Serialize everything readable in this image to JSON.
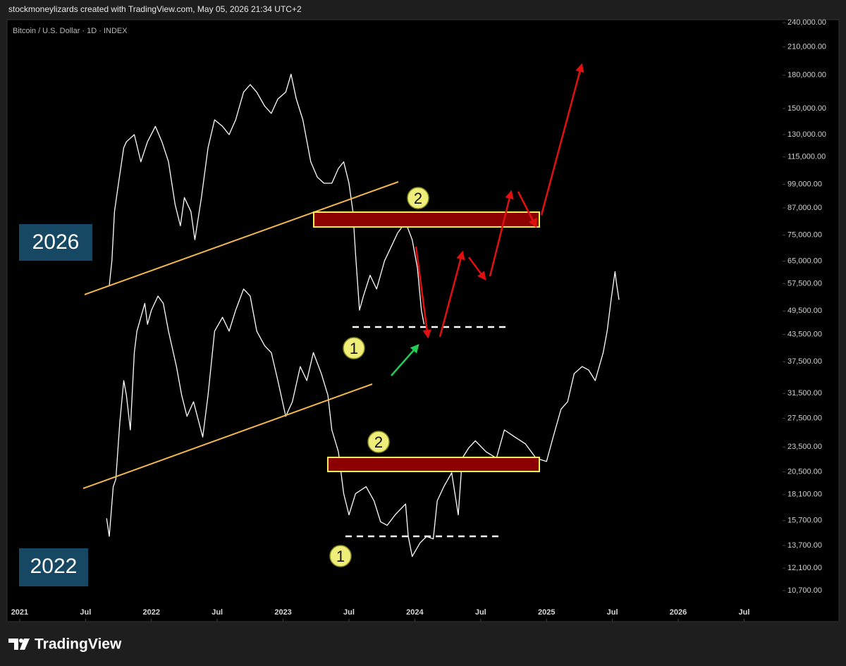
{
  "header": {
    "text": "stockmoneylizards created with TradingView.com, May 05, 2026 21:34 UTC+2"
  },
  "footer": {
    "brand": "TradingView"
  },
  "chart_data": {
    "type": "line",
    "title": "Bitcoin / U.S. Dollar · 1D · INDEX",
    "yscale": "log",
    "grid": false,
    "xlim": [
      2020.904,
      2026.792
    ],
    "ylim": [
      9100,
      242000
    ],
    "xticks": [
      2021,
      {
        "value": 2021.5,
        "label": "Jul"
      },
      2022,
      {
        "value": 2022.5,
        "label": "Jul"
      },
      2023,
      {
        "value": 2023.5,
        "label": "Jul"
      },
      2024,
      {
        "value": 2024.5,
        "label": "Jul"
      },
      2025,
      {
        "value": 2025.5,
        "label": "Jul"
      },
      2026,
      {
        "value": 2026.5,
        "label": "Jul"
      }
    ],
    "yticks": [
      {
        "value": 240000,
        "label": "240,000.00"
      },
      {
        "value": 210000,
        "label": "210,000.00"
      },
      {
        "value": 180000,
        "label": "180,000.00"
      },
      {
        "value": 150000,
        "label": "150,000.00"
      },
      {
        "value": 130000,
        "label": "130,000.00"
      },
      {
        "value": 115000,
        "label": "115,000.00"
      },
      {
        "value": 99000,
        "label": "99,000.00"
      },
      {
        "value": 87000,
        "label": "87,000.00"
      },
      {
        "value": 75000,
        "label": "75,000.00"
      },
      {
        "value": 65000,
        "label": "65,000.00"
      },
      {
        "value": 57500,
        "label": "57,500.00"
      },
      {
        "value": 49500,
        "label": "49,500.00"
      },
      {
        "value": 43500,
        "label": "43,500.00"
      },
      {
        "value": 37500,
        "label": "37,500.00"
      },
      {
        "value": 31500,
        "label": "31,500.00"
      },
      {
        "value": 27500,
        "label": "27,500.00"
      },
      {
        "value": 23500,
        "label": "23,500.00"
      },
      {
        "value": 20500,
        "label": "20,500.00"
      },
      {
        "value": 18100,
        "label": "18,100.00"
      },
      {
        "value": 15700,
        "label": "15,700.00"
      },
      {
        "value": 13700,
        "label": "13,700.00"
      },
      {
        "value": 12100,
        "label": "12,100.00"
      },
      {
        "value": 10700,
        "label": "10,700.00"
      }
    ],
    "series": [
      {
        "color": "#ffffff",
        "x": [
          2021.66,
          2021.68,
          2021.71,
          2021.73,
          2021.76,
          2021.79,
          2021.81,
          2021.84,
          2021.87,
          2021.89,
          2021.92,
          2021.95,
          2021.97,
          2022.0,
          2022.05,
          2022.09,
          2022.13,
          2022.19,
          2022.23,
          2022.27,
          2022.32,
          2022.39,
          2022.43,
          2022.48,
          2022.54,
          2022.59,
          2022.64,
          2022.7,
          2022.75,
          2022.8,
          2022.86,
          2022.91,
          2022.96,
          2023.02,
          2023.07,
          2023.13,
          2023.18,
          2023.23,
          2023.29,
          2023.34,
          2023.37,
          2023.42,
          2023.46,
          2023.5,
          2023.55,
          2023.63,
          2023.69,
          2023.74,
          2023.79,
          2023.85,
          2023.93,
          2023.95,
          2023.98,
          2024.04,
          2024.09,
          2024.14,
          2024.17,
          2024.22,
          2024.28,
          2024.33,
          2024.36,
          2024.41,
          2024.46,
          2024.54,
          2024.62,
          2024.68,
          2024.76,
          2024.84,
          2024.92,
          2025.0,
          2025.05,
          2025.11,
          2025.16,
          2025.21,
          2025.27,
          2025.32,
          2025.37,
          2025.43,
          2025.46,
          2025.49,
          2025.52,
          2025.53,
          2025.55
        ],
        "values": [
          15900,
          14400,
          18900,
          19700,
          26800,
          33800,
          31200,
          25800,
          39400,
          44300,
          47800,
          51600,
          46000,
          49700,
          53700,
          51600,
          44300,
          36500,
          31200,
          27800,
          30100,
          24800,
          31200,
          44300,
          47800,
          44300,
          49700,
          55800,
          53700,
          44300,
          40900,
          39400,
          33800,
          27800,
          30100,
          36500,
          33800,
          39400,
          35100,
          31200,
          25800,
          22900,
          18200,
          16200,
          18200,
          18900,
          17500,
          15600,
          15300,
          16200,
          17200,
          14400,
          12900,
          13900,
          14400,
          14200,
          17500,
          18900,
          20400,
          16200,
          22100,
          23400,
          24300,
          22900,
          22100,
          25800,
          24800,
          23900,
          22100,
          21700,
          24800,
          28900,
          30100,
          35100,
          36500,
          35800,
          33800,
          39400,
          44300,
          52600,
          61400,
          58000,
          52600
        ]
      },
      {
        "color": "#ffffff",
        "x": [
          2021.68,
          2021.7,
          2021.72,
          2021.75,
          2021.79,
          2021.81,
          2021.87,
          2021.92,
          2021.97,
          2022.03,
          2022.08,
          2022.13,
          2022.18,
          2022.22,
          2022.25,
          2022.3,
          2022.33,
          2022.38,
          2022.43,
          2022.48,
          2022.54,
          2022.59,
          2022.64,
          2022.7,
          2022.75,
          2022.8,
          2022.86,
          2022.91,
          2022.96,
          2023.02,
          2023.06,
          2023.1,
          2023.15,
          2023.21,
          2023.26,
          2023.31,
          2023.37,
          2023.42,
          2023.46,
          2023.5,
          2023.53,
          2023.55,
          2023.58,
          2023.61,
          2023.66,
          2023.71,
          2023.77,
          2023.82,
          2023.87,
          2023.93,
          2023.98,
          2024.02,
          2024.05,
          2024.07
        ],
        "values": [
          56900,
          65100,
          85300,
          99600,
          121000,
          125000,
          130000,
          112000,
          125000,
          136000,
          125000,
          112000,
          88600,
          78900,
          92100,
          85300,
          73100,
          92100,
          121000,
          141000,
          136000,
          130000,
          141000,
          164000,
          171000,
          164000,
          152000,
          146000,
          158000,
          164000,
          181000,
          158000,
          141000,
          112000,
          103000,
          99600,
          99600,
          108000,
          112000,
          99600,
          85300,
          67700,
          49700,
          53700,
          60200,
          55800,
          65100,
          70300,
          75900,
          80400,
          73100,
          62600,
          49700,
          46000
        ]
      }
    ],
    "annotations": [
      "2026",
      "2022",
      "2",
      "1",
      "2",
      "1"
    ]
  }
}
